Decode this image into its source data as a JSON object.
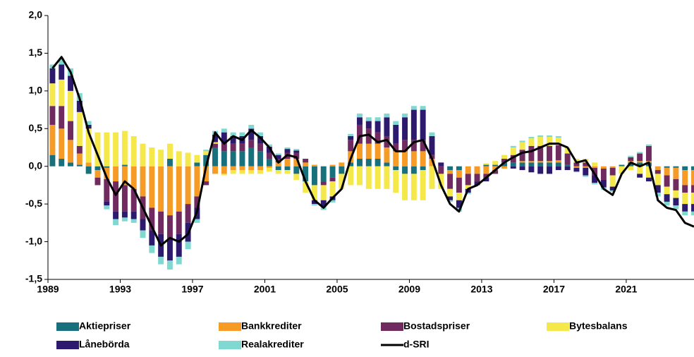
{
  "chart_data": {
    "type": "bar",
    "stacked": true,
    "x": [
      1989.0,
      1989.5,
      1990.0,
      1990.5,
      1991.0,
      1991.5,
      1992.0,
      1992.5,
      1993.0,
      1993.5,
      1994.0,
      1994.5,
      1995.0,
      1995.5,
      1996.0,
      1996.5,
      1997.0,
      1997.5,
      1998.0,
      1998.5,
      1999.0,
      1999.5,
      2000.0,
      2000.5,
      2001.0,
      2001.5,
      2002.0,
      2002.5,
      2003.0,
      2003.5,
      2004.0,
      2004.5,
      2005.0,
      2005.5,
      2006.0,
      2006.5,
      2007.0,
      2007.5,
      2008.0,
      2008.5,
      2009.0,
      2009.5,
      2010.0,
      2010.5,
      2011.0,
      2011.5,
      2012.0,
      2012.5,
      2013.0,
      2013.5,
      2014.0,
      2014.5,
      2015.0,
      2015.5,
      2016.0,
      2016.5,
      2017.0,
      2017.5,
      2018.0,
      2018.5,
      2019.0,
      2019.5,
      2020.0,
      2020.5,
      2021.0,
      2021.5,
      2022.0,
      2022.5,
      2023.0,
      2023.5,
      2024.0,
      2024.5
    ],
    "series": [
      {
        "name": "Aktiepriser",
        "color": "#17707c",
        "values": [
          0.15,
          0.1,
          0.05,
          0.02,
          -0.1,
          -0.05,
          -0.02,
          0,
          0.02,
          0,
          0,
          0,
          0,
          0.1,
          0,
          0,
          0.05,
          0.15,
          0.25,
          0.2,
          0.2,
          0.2,
          0.25,
          0.2,
          0.1,
          -0.05,
          -0.05,
          -0.1,
          -0.2,
          -0.25,
          -0.2,
          -0.15,
          -0.1,
          0.05,
          0.1,
          0.1,
          0.1,
          0.05,
          -0.05,
          -0.1,
          -0.1,
          -0.05,
          0,
          0,
          -0.05,
          -0.05,
          0,
          0,
          0.02,
          0.02,
          0.05,
          0.05,
          0.05,
          0.05,
          0.05,
          0.05,
          0.05,
          0.02,
          0,
          0,
          0,
          0,
          0,
          0.02,
          0.05,
          0.05,
          0.05,
          0,
          -0.02,
          -0.02,
          -0.05,
          -0.05
        ]
      },
      {
        "name": "Bankkrediter",
        "color": "#f59b26",
        "values": [
          0.4,
          0.4,
          0.3,
          0.15,
          0.05,
          -0.1,
          -0.15,
          -0.2,
          -0.25,
          -0.3,
          -0.4,
          -0.55,
          -0.6,
          -0.65,
          -0.6,
          -0.5,
          -0.4,
          -0.2,
          -0.1,
          -0.1,
          -0.05,
          -0.05,
          -0.05,
          -0.05,
          -0.02,
          0.05,
          0.1,
          0.1,
          0.05,
          0.02,
          0,
          0.02,
          0.05,
          0.15,
          0.2,
          0.2,
          0.2,
          0.2,
          0.2,
          0.2,
          0.2,
          0.2,
          0.1,
          0,
          -0.05,
          -0.1,
          -0.1,
          -0.1,
          -0.1,
          -0.05,
          -0.03,
          0,
          0.02,
          0.02,
          0.02,
          0.02,
          0.03,
          0,
          -0.02,
          -0.02,
          -0.02,
          -0.03,
          -0.02,
          0,
          0.02,
          0.02,
          0.02,
          -0.05,
          -0.1,
          -0.15,
          -0.2,
          -0.2
        ]
      },
      {
        "name": "Bostadspriser",
        "color": "#6f2a5f",
        "values": [
          0.25,
          0.3,
          0.25,
          0.1,
          0,
          -0.1,
          -0.3,
          -0.4,
          -0.35,
          -0.3,
          -0.3,
          -0.3,
          -0.3,
          -0.3,
          -0.3,
          -0.25,
          -0.15,
          -0.05,
          0.05,
          0.1,
          0.1,
          0.1,
          0.1,
          0.1,
          0.08,
          0.05,
          0.08,
          0.08,
          0.05,
          0,
          -0.05,
          -0.05,
          0,
          0.15,
          0.25,
          0.2,
          0.15,
          0.15,
          0.1,
          0.15,
          0.15,
          0.15,
          0.05,
          -0.1,
          -0.2,
          -0.2,
          -0.15,
          -0.1,
          -0.05,
          -0.05,
          0.05,
          0.1,
          0.15,
          0.2,
          0.2,
          0.2,
          0.2,
          0.15,
          0.05,
          0.05,
          -0.1,
          -0.15,
          -0.1,
          0,
          0.05,
          0.1,
          0.2,
          -0.05,
          -0.15,
          -0.15,
          -0.1,
          -0.1
        ]
      },
      {
        "name": "Bytesbalans",
        "color": "#f4e84a",
        "values": [
          0.3,
          0.35,
          0.4,
          0.45,
          0.45,
          0.45,
          0.45,
          0.45,
          0.45,
          0.4,
          0.3,
          0.25,
          0.22,
          0.2,
          0.2,
          0.18,
          0.1,
          0.05,
          0.02,
          -0.02,
          -0.05,
          -0.05,
          -0.05,
          -0.05,
          -0.05,
          -0.05,
          -0.05,
          -0.08,
          -0.15,
          -0.2,
          -0.2,
          -0.2,
          -0.2,
          -0.25,
          -0.25,
          -0.3,
          -0.3,
          -0.3,
          -0.3,
          -0.35,
          -0.35,
          -0.4,
          -0.3,
          -0.2,
          -0.1,
          -0.1,
          -0.05,
          0,
          0.02,
          0.05,
          0.05,
          0.1,
          0.1,
          0.1,
          0.12,
          0.12,
          0.1,
          0.08,
          0.05,
          0.05,
          0.05,
          0,
          -0.15,
          -0.1,
          -0.05,
          -0.1,
          -0.15,
          -0.15,
          -0.1,
          -0.1,
          -0.15,
          -0.15
        ]
      },
      {
        "name": "Lånebörda",
        "color": "#2d1a6f",
        "values": [
          0.2,
          0.2,
          0.2,
          0.15,
          0.05,
          0,
          -0.05,
          -0.1,
          -0.08,
          -0.1,
          -0.15,
          -0.2,
          -0.3,
          -0.3,
          -0.3,
          -0.25,
          -0.15,
          0,
          0.1,
          0.15,
          0.1,
          0.1,
          0.15,
          0.1,
          0.08,
          0.05,
          0.05,
          0.03,
          0,
          -0.05,
          -0.08,
          -0.05,
          0,
          0.05,
          0.1,
          0.1,
          0.15,
          0.25,
          0.25,
          0.3,
          0.4,
          0.4,
          0.25,
          0.05,
          -0.05,
          -0.1,
          -0.05,
          -0.05,
          -0.05,
          0,
          0,
          -0.03,
          -0.05,
          -0.08,
          -0.1,
          -0.1,
          -0.05,
          -0.05,
          -0.05,
          -0.1,
          -0.1,
          -0.1,
          -0.05,
          0,
          0,
          -0.05,
          -0.05,
          -0.1,
          -0.1,
          -0.1,
          -0.1,
          -0.1
        ]
      },
      {
        "name": "Realakrediter",
        "color": "#80d9d1",
        "values": [
          0.05,
          0.08,
          0.1,
          0.1,
          0.05,
          0,
          -0.05,
          -0.08,
          -0.05,
          -0.05,
          -0.1,
          -0.1,
          -0.1,
          -0.12,
          -0.1,
          -0.1,
          -0.05,
          0.02,
          0.05,
          0.05,
          0.05,
          0.05,
          0.05,
          0.05,
          0.03,
          0.02,
          0.02,
          0.02,
          0,
          -0.02,
          -0.05,
          -0.03,
          0,
          0.03,
          0.05,
          0.05,
          0.05,
          0.05,
          0.05,
          0.05,
          0.05,
          0.05,
          0.05,
          0,
          -0.02,
          -0.05,
          -0.02,
          0,
          0,
          0,
          0,
          0.02,
          0.02,
          0.02,
          0.02,
          0.02,
          0.02,
          0,
          -0.01,
          -0.02,
          -0.02,
          -0.03,
          -0.02,
          0,
          0.02,
          0.02,
          0.02,
          -0.05,
          -0.05,
          -0.05,
          -0.05,
          -0.05
        ]
      },
      {
        "name": "d-SRI",
        "color": "#000000",
        "type": "line",
        "values": [
          1.3,
          1.45,
          1.25,
          0.9,
          0.45,
          0.15,
          -0.15,
          -0.38,
          -0.2,
          -0.3,
          -0.55,
          -0.8,
          -1.05,
          -0.95,
          -1.0,
          -0.9,
          -0.6,
          0.0,
          0.45,
          0.3,
          0.4,
          0.35,
          0.48,
          0.38,
          0.25,
          0.05,
          0.15,
          0.12,
          -0.2,
          -0.45,
          -0.55,
          -0.42,
          -0.3,
          0.1,
          0.4,
          0.42,
          0.32,
          0.35,
          0.2,
          0.2,
          0.32,
          0.35,
          0.1,
          -0.25,
          -0.5,
          -0.6,
          -0.3,
          -0.25,
          -0.15,
          -0.05,
          0.05,
          0.12,
          0.18,
          0.2,
          0.25,
          0.3,
          0.3,
          0.25,
          0.05,
          0.08,
          -0.1,
          -0.3,
          -0.38,
          -0.1,
          0.05,
          0.0,
          0.05,
          -0.45,
          -0.55,
          -0.58,
          -0.75,
          -0.8
        ]
      }
    ],
    "xlim": [
      1989,
      2024.75
    ],
    "xticks": [
      1989,
      1993,
      1997,
      2001,
      2005,
      2009,
      2013,
      2017,
      2021
    ],
    "ylim": [
      -1.5,
      2.0
    ],
    "yticks": [
      {
        "value": -1.5,
        "label": "-1,5"
      },
      {
        "value": -1.0,
        "label": "-1,0"
      },
      {
        "value": -0.5,
        "label": "-0,5"
      },
      {
        "value": 0.0,
        "label": "0,0"
      },
      {
        "value": 0.5,
        "label": "0,5"
      },
      {
        "value": 1.0,
        "label": "1,0"
      },
      {
        "value": 1.5,
        "label": "1,5"
      },
      {
        "value": 2.0,
        "label": "2,0"
      }
    ],
    "legend": "bottom"
  }
}
